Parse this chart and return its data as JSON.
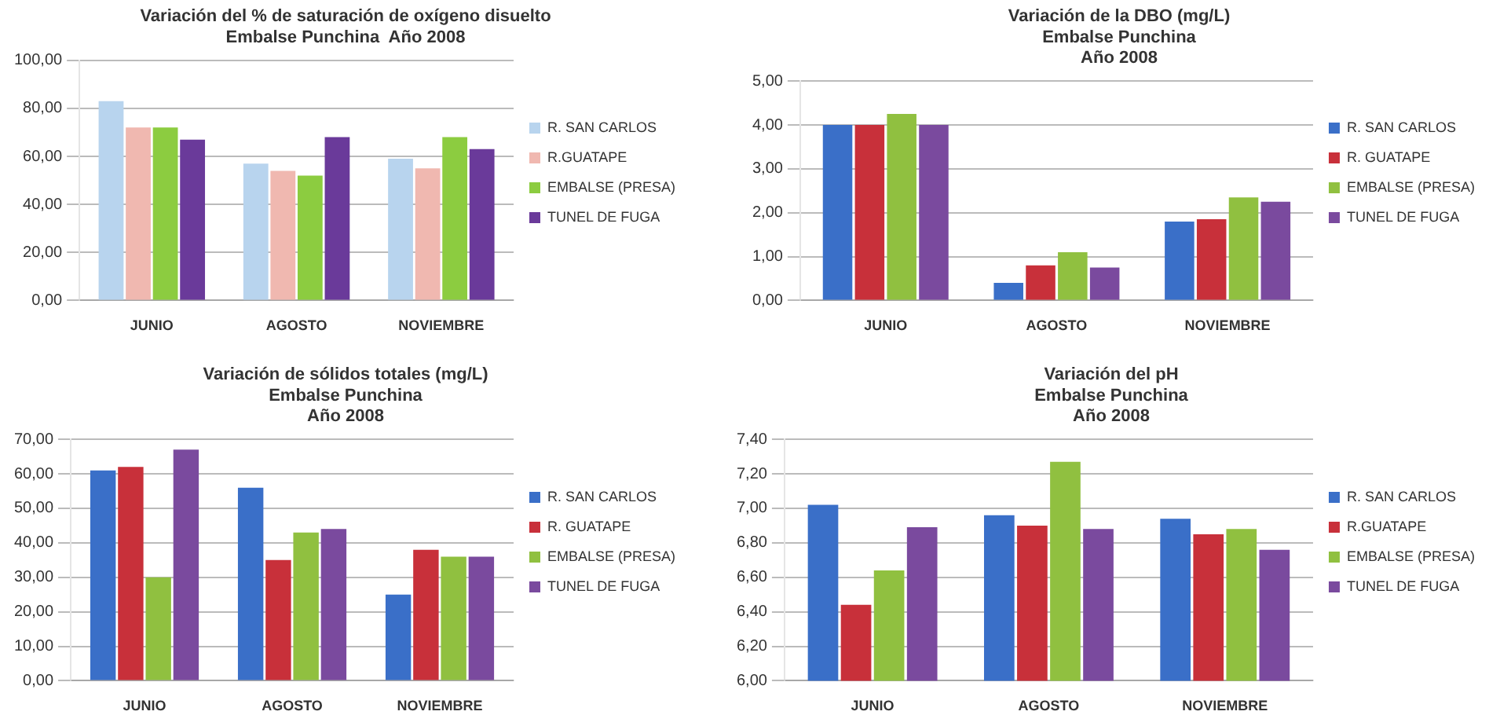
{
  "chart_data": [
    {
      "type": "bar",
      "title": "Variación del % de saturación de oxígeno disuelto\nEmbalse Punchina  Año 2008",
      "categories": [
        "JUNIO",
        "AGOSTO",
        "NOVIEMBRE"
      ],
      "series": [
        {
          "name": "R. SAN CARLOS",
          "color": "#b8d4ee",
          "values": [
            83,
            57,
            59
          ]
        },
        {
          "name": "R.GUATAPE",
          "color": "#f0b8b0",
          "values": [
            72,
            54,
            55
          ]
        },
        {
          "name": "EMBALSE (PRESA)",
          "color": "#8ccc40",
          "values": [
            72,
            52,
            68
          ]
        },
        {
          "name": "TUNEL DE FUGA",
          "color": "#6a3a9a",
          "values": [
            67,
            68,
            63
          ]
        }
      ],
      "ylim": [
        0,
        100
      ],
      "yticks": [
        {
          "value": 0,
          "label": "0,00"
        },
        {
          "value": 20,
          "label": "20,00"
        },
        {
          "value": 40,
          "label": "40,00"
        },
        {
          "value": 60,
          "label": "60,00"
        },
        {
          "value": 80,
          "label": "80,00"
        },
        {
          "value": 100,
          "label": "100,00"
        }
      ],
      "grid": "y",
      "legend": "right"
    },
    {
      "type": "bar",
      "title": "Variación de la DBO (mg/L)\nEmbalse Punchina\nAño 2008",
      "categories": [
        "JUNIO",
        "AGOSTO",
        "NOVIEMBRE"
      ],
      "series": [
        {
          "name": "R. SAN CARLOS",
          "color": "#3a6fc8",
          "values": [
            4.0,
            0.4,
            1.8
          ]
        },
        {
          "name": "R. GUATAPE",
          "color": "#c8303a",
          "values": [
            4.0,
            0.8,
            1.85
          ]
        },
        {
          "name": "EMBALSE (PRESA)",
          "color": "#90c040",
          "values": [
            4.25,
            1.1,
            2.35
          ]
        },
        {
          "name": "TUNEL DE FUGA",
          "color": "#7a4a9e",
          "values": [
            4.0,
            0.75,
            2.25
          ]
        }
      ],
      "ylim": [
        0,
        5
      ],
      "yticks": [
        {
          "value": 0,
          "label": "0,00"
        },
        {
          "value": 1,
          "label": "1,00"
        },
        {
          "value": 2,
          "label": "2,00"
        },
        {
          "value": 3,
          "label": "3,00"
        },
        {
          "value": 4,
          "label": "4,00"
        },
        {
          "value": 5,
          "label": "5,00"
        }
      ],
      "grid": "y",
      "legend": "right"
    },
    {
      "type": "bar",
      "title": "Variación de sólidos totales (mg/L)\nEmbalse Punchina\nAño 2008",
      "categories": [
        "JUNIO",
        "AGOSTO",
        "NOVIEMBRE"
      ],
      "series": [
        {
          "name": "R. SAN CARLOS",
          "color": "#3a6fc8",
          "values": [
            61,
            56,
            25
          ]
        },
        {
          "name": "R. GUATAPE",
          "color": "#c8303a",
          "values": [
            62,
            35,
            38
          ]
        },
        {
          "name": "EMBALSE (PRESA)",
          "color": "#90c040",
          "values": [
            30,
            43,
            36
          ]
        },
        {
          "name": "TUNEL DE FUGA",
          "color": "#7a4a9e",
          "values": [
            67,
            44,
            36
          ]
        }
      ],
      "ylim": [
        0,
        70
      ],
      "yticks": [
        {
          "value": 0,
          "label": "0,00"
        },
        {
          "value": 10,
          "label": "10,00"
        },
        {
          "value": 20,
          "label": "20,00"
        },
        {
          "value": 30,
          "label": "30,00"
        },
        {
          "value": 40,
          "label": "40,00"
        },
        {
          "value": 50,
          "label": "50,00"
        },
        {
          "value": 60,
          "label": "60,00"
        },
        {
          "value": 70,
          "label": "70,00"
        }
      ],
      "grid": "y",
      "legend": "right"
    },
    {
      "type": "bar",
      "title": "Variación del pH\nEmbalse Punchina\nAño 2008",
      "categories": [
        "JUNIO",
        "AGOSTO",
        "NOVIEMBRE"
      ],
      "series": [
        {
          "name": "R. SAN CARLOS",
          "color": "#3a6fc8",
          "values": [
            7.02,
            6.96,
            6.94
          ]
        },
        {
          "name": "R.GUATAPE",
          "color": "#c8303a",
          "values": [
            6.44,
            6.9,
            6.85
          ]
        },
        {
          "name": "EMBALSE (PRESA)",
          "color": "#90c040",
          "values": [
            6.64,
            7.27,
            6.88
          ]
        },
        {
          "name": "TUNEL DE FUGA",
          "color": "#7a4a9e",
          "values": [
            6.89,
            6.88,
            6.76
          ]
        }
      ],
      "ylim": [
        6,
        7.4
      ],
      "yticks": [
        {
          "value": 6,
          "label": "6,00"
        },
        {
          "value": 6.2,
          "label": "6,20"
        },
        {
          "value": 6.4,
          "label": "6,40"
        },
        {
          "value": 6.6,
          "label": "6,60"
        },
        {
          "value": 6.8,
          "label": "6,80"
        },
        {
          "value": 7,
          "label": "7,00"
        },
        {
          "value": 7.2,
          "label": "7,20"
        },
        {
          "value": 7.4,
          "label": "7,40"
        }
      ],
      "grid": "y",
      "legend": "right"
    }
  ]
}
